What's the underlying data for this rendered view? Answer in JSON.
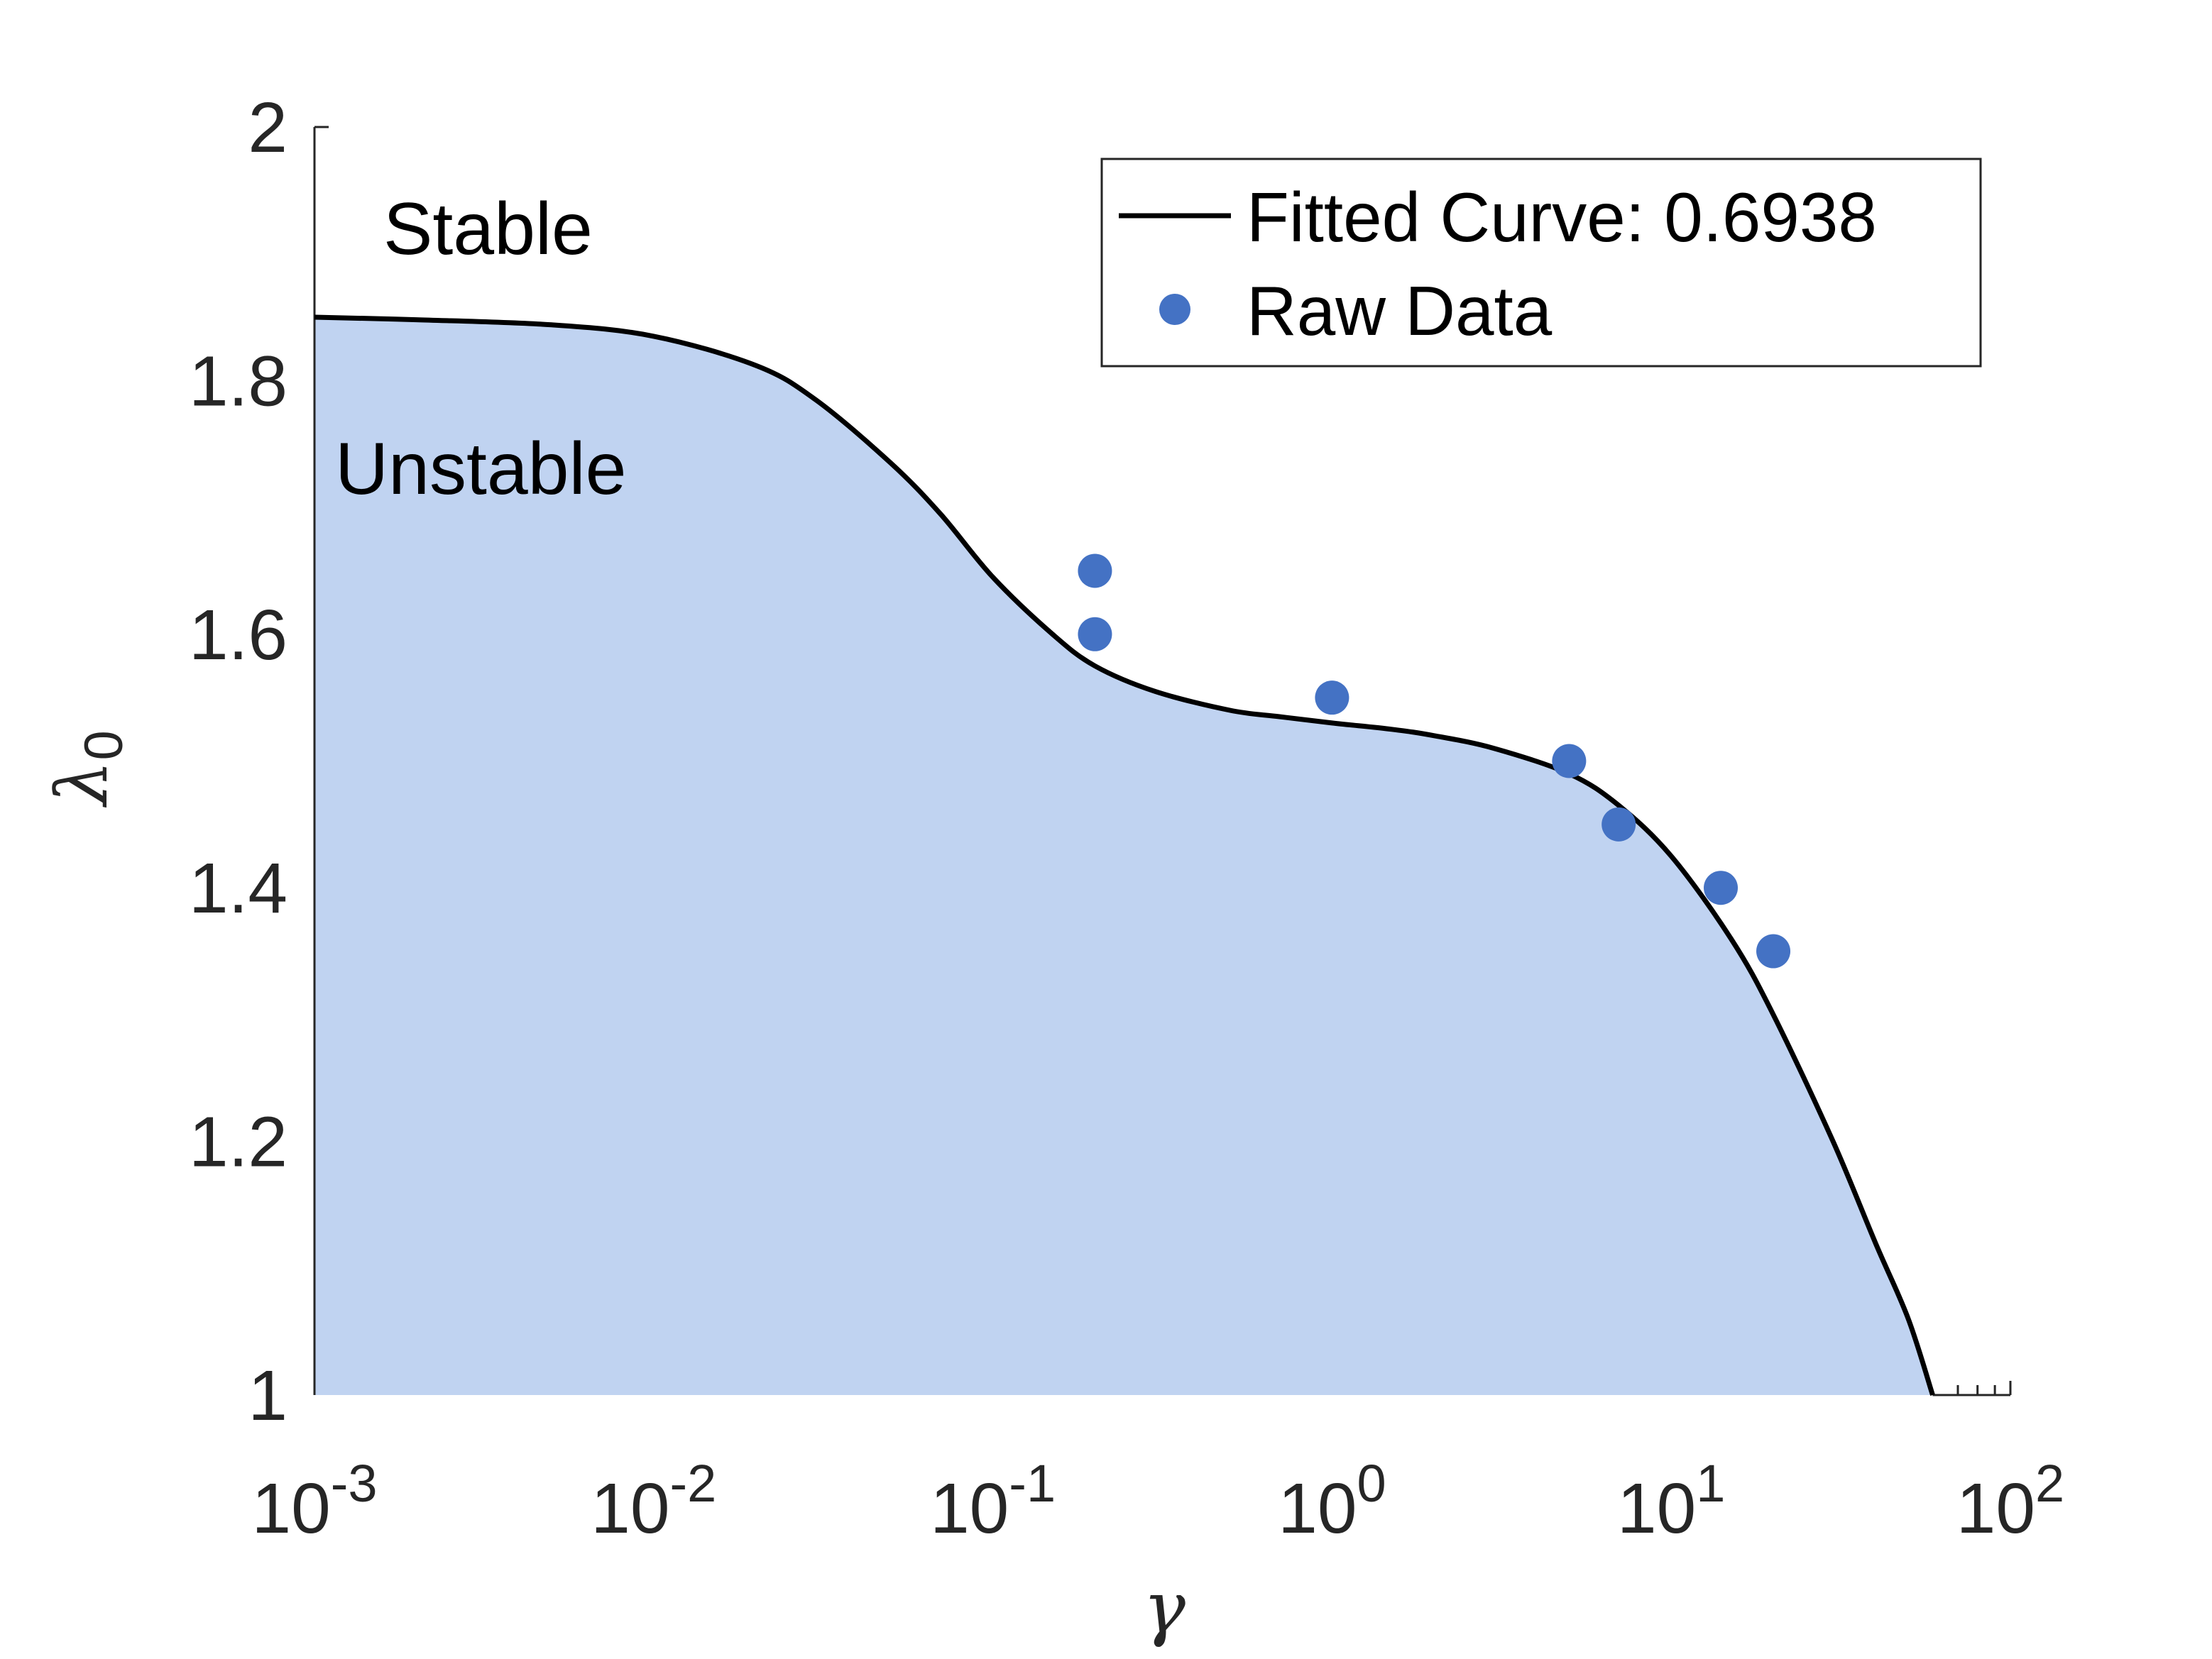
{
  "chart_data": {
    "type": "area",
    "xscale": "log",
    "xlim": [
      0.001,
      100
    ],
    "ylim": [
      1,
      2
    ],
    "xlabel": "γ",
    "ylabel": {
      "base": "λ",
      "subscript": "0"
    },
    "x_ticks": [
      {
        "base": "10",
        "exp": "-3"
      },
      {
        "base": "10",
        "exp": "-2"
      },
      {
        "base": "10",
        "exp": "-1"
      },
      {
        "base": "10",
        "exp": "0"
      },
      {
        "base": "10",
        "exp": "1"
      },
      {
        "base": "10",
        "exp": "2"
      }
    ],
    "x_tick_values": [
      0.001,
      0.01,
      0.1,
      1,
      10,
      100
    ],
    "y_ticks": [
      "1",
      "1.2",
      "1.4",
      "1.6",
      "1.8",
      "2"
    ],
    "y_tick_values": [
      1,
      1.2,
      1.4,
      1.6,
      1.8,
      2
    ],
    "regions": {
      "above": "Stable",
      "below": "Unstable"
    },
    "fill_color": "#c0d3f1",
    "line_color": "#000000",
    "marker_color": "#4472c4",
    "grid": false,
    "legend_position": "top-right",
    "series": [
      {
        "name": "Fitted Curve: 0.6938",
        "kind": "line",
        "x": [
          0.001,
          0.002,
          0.005,
          0.01,
          0.02,
          0.03,
          0.05,
          0.07,
          0.1,
          0.15,
          0.2,
          0.3,
          0.5,
          0.7,
          1,
          1.5,
          2,
          3,
          5,
          7,
          10,
          15,
          20,
          30,
          40,
          50,
          59
        ],
        "y": [
          1.85,
          1.848,
          1.844,
          1.835,
          1.812,
          1.785,
          1.735,
          1.695,
          1.645,
          1.6,
          1.575,
          1.555,
          1.54,
          1.535,
          1.53,
          1.525,
          1.52,
          1.51,
          1.49,
          1.465,
          1.425,
          1.36,
          1.3,
          1.2,
          1.12,
          1.06,
          1.0
        ]
      },
      {
        "name": "Raw Data",
        "kind": "scatter",
        "x": [
          0.2,
          0.2,
          1.0,
          5.0,
          7.0,
          14.0,
          20.0
        ],
        "y": [
          1.65,
          1.6,
          1.55,
          1.5,
          1.45,
          1.4,
          1.35
        ]
      }
    ]
  }
}
